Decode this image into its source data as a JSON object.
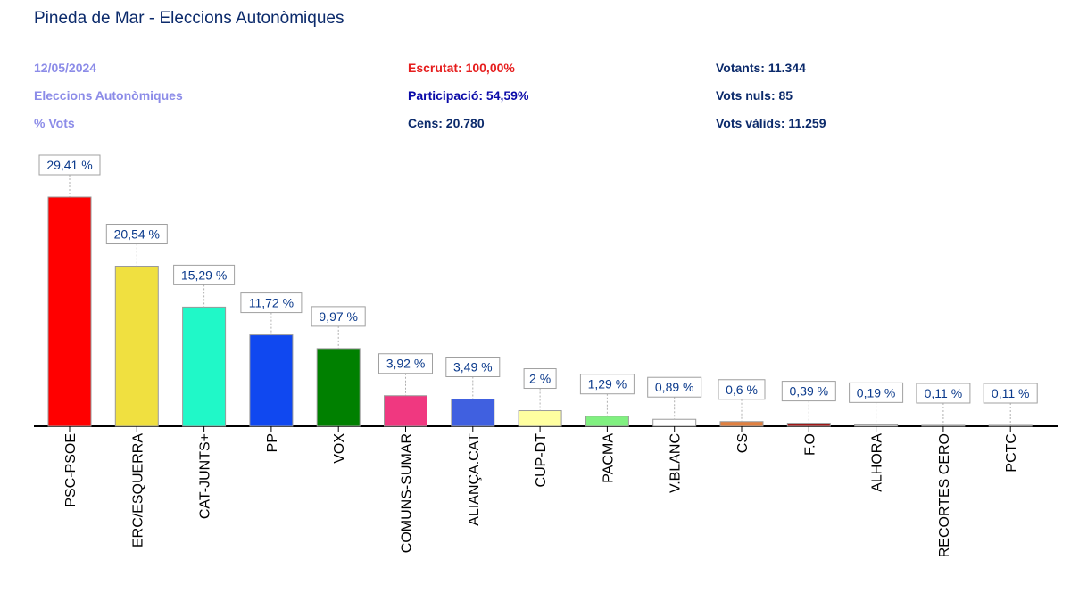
{
  "header": {
    "title": "Pineda de Mar - Eleccions Autonòmiques",
    "date": "12/05/2024",
    "election": "Eleccions Autonòmiques",
    "metric": "% Vots",
    "scrutiny": "Escrutat: 100,00%",
    "participation": "Participació: 54,59%",
    "census": "Cens: 20.780",
    "voters": "Votants: 11.344",
    "null_votes": "Vots nuls: 85",
    "valid_votes": "Vots vàlids: 11.259"
  },
  "chart_data": {
    "type": "bar",
    "categories": [
      "PSC-PSOE",
      "ERC/ESQUERRA",
      "CAT-JUNTS+",
      "PP",
      "VOX",
      "COMUNS-SUMAR",
      "ALIANÇA.CAT",
      "CUP-DT",
      "PACMA",
      "V.BLANC",
      "CS",
      "F.O",
      "ALHORA",
      "RECORTES CERO",
      "PCTC"
    ],
    "values": [
      29.41,
      20.54,
      15.29,
      11.72,
      9.97,
      3.92,
      3.49,
      2,
      1.29,
      0.89,
      0.6,
      0.39,
      0.19,
      0.11,
      0.11
    ],
    "data_labels": [
      "29,41 %",
      "20,54 %",
      "15,29 %",
      "11,72 %",
      "9,97 %",
      "3,92 %",
      "3,49 %",
      "2 %",
      "1,29 %",
      "0,89 %",
      "0,6 %",
      "0,39 %",
      "0,19 %",
      "0,11 %",
      "0,11 %"
    ],
    "colors": [
      "#ff0000",
      "#f0e040",
      "#20f8c8",
      "#1048f0",
      "#008000",
      "#f03880",
      "#4060e0",
      "#ffffa0",
      "#80f080",
      "#ffffff",
      "#e08040",
      "#a01818",
      "#e0e0e0",
      "#e0e0e0",
      "#e0e0e0"
    ],
    "ylim": [
      0,
      30
    ],
    "title": "",
    "xlabel": "",
    "ylabel": "",
    "grid": false
  }
}
